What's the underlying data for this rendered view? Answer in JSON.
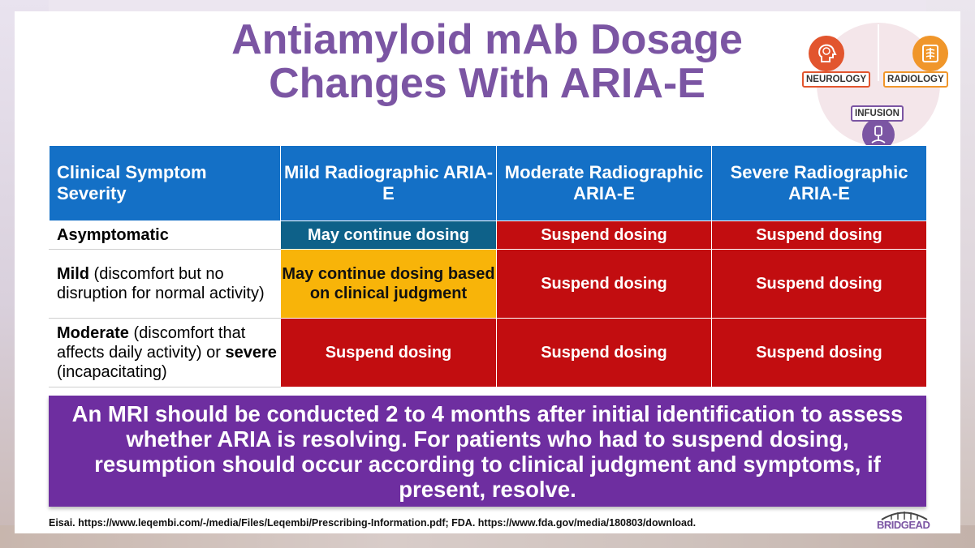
{
  "title": {
    "line1": "Antiamyloid mAb Dosage",
    "line2": "Changes With ARIA-E"
  },
  "logo": {
    "neurology": "NEUROLOGY",
    "radiology": "RADIOLOGY",
    "infusion": "INFUSION",
    "icons": [
      "brain-head-icon",
      "xray-chest-icon",
      "iv-drip-icon"
    ],
    "colors": {
      "neurology": "#e2552e",
      "radiology": "#f0962a",
      "infusion": "#7b55a3"
    }
  },
  "table": {
    "headers": [
      "Clinical Symptom Severity",
      "Mild Radiographic ARIA-E",
      "Moderate Radiographic ARIA-E",
      "Severe Radiographic ARIA-E"
    ],
    "rows": [
      {
        "label_bold": "Asymptomatic",
        "label_rest": "",
        "cells": [
          "May continue dosing",
          "Suspend dosing",
          "Suspend dosing"
        ]
      },
      {
        "label_bold": "Mild",
        "label_rest": " (discomfort but no disruption for normal activity)",
        "cells": [
          "May continue dosing based on clinical judgment",
          "Suspend dosing",
          "Suspend dosing"
        ]
      },
      {
        "label_bold": "Moderate",
        "label_rest": " (discomfort that affects daily activity) or ",
        "label_bold2": "severe",
        "label_rest2": " (incapacitating)",
        "cells": [
          "Suspend dosing",
          "Suspend dosing",
          "Suspend dosing"
        ]
      }
    ],
    "colors": {
      "header": "#1470c6",
      "continue": "#0e6189",
      "judgment": "#f8b409",
      "suspend": "#c20d10"
    }
  },
  "callout": "An MRI should be conducted 2 to 4 months after initial identification to assess whether ARIA is resolving. For patients who had to suspend dosing, resumption should occur according to clinical judgment and symptoms, if present, resolve.",
  "reference": "Eisai. https://www.leqembi.com/-/media/Files/Leqembi/Prescribing-Information.pdf; FDA. https://www.fda.gov/media/180803/download.",
  "brand": "BRIDGEAD"
}
